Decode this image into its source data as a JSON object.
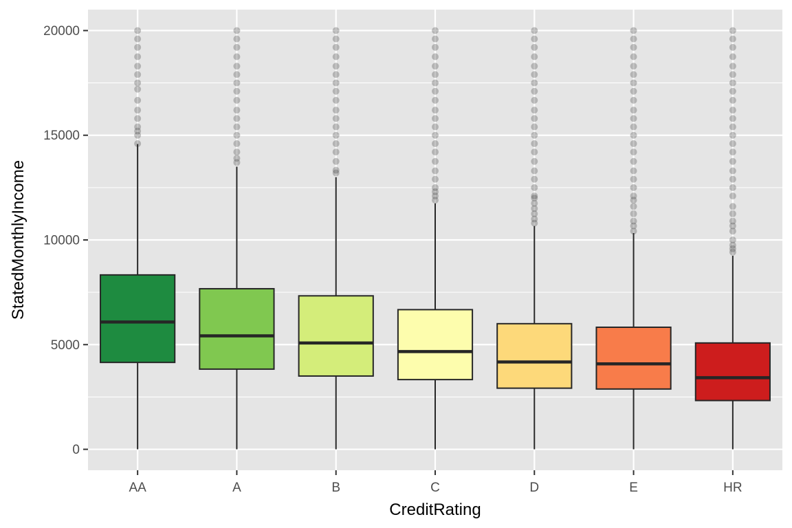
{
  "chart_data": {
    "type": "box",
    "xlabel": "CreditRating",
    "ylabel": "StatedMonthlyIncome",
    "ylim": [
      -1000,
      21000
    ],
    "yticks": [
      0,
      5000,
      10000,
      15000,
      20000
    ],
    "ytick_labels": [
      "0",
      "5000",
      "10000",
      "15000",
      "20000"
    ],
    "grid": true,
    "colors": {
      "panel_bg": "#e5e5e5",
      "grid": "#ffffff",
      "box_outline": "#262626",
      "outlier": "#333333"
    },
    "categories": [
      "AA",
      "A",
      "B",
      "C",
      "D",
      "E",
      "HR"
    ],
    "boxes": [
      {
        "category": "AA",
        "fill": "#1e8b40",
        "min": 0,
        "q1": 4150,
        "median": 6080,
        "q3": 8330,
        "whisker_high": 14580,
        "outliers": [
          14600,
          15000,
          15200,
          15400,
          15800,
          16200,
          16670,
          17200,
          17500,
          17900,
          18300,
          18750,
          19200,
          19600,
          20000
        ]
      },
      {
        "category": "A",
        "fill": "#80c850",
        "min": 0,
        "q1": 3830,
        "median": 5420,
        "q3": 7670,
        "whisker_high": 13500,
        "outliers": [
          13700,
          13900,
          14200,
          14600,
          15000,
          15400,
          15800,
          16200,
          16670,
          17100,
          17500,
          17900,
          18300,
          18750,
          19200,
          19600,
          20000
        ]
      },
      {
        "category": "B",
        "fill": "#d4ed7a",
        "min": 0,
        "q1": 3500,
        "median": 5080,
        "q3": 7330,
        "whisker_high": 13000,
        "outliers": [
          13200,
          13330,
          13750,
          14200,
          14600,
          15000,
          15400,
          15800,
          16200,
          16670,
          17100,
          17500,
          17900,
          18300,
          18750,
          19200,
          19600,
          20000
        ]
      },
      {
        "category": "C",
        "fill": "#fdfdad",
        "min": 0,
        "q1": 3330,
        "median": 4670,
        "q3": 6670,
        "whisker_high": 11750,
        "outliers": [
          11900,
          12100,
          12300,
          12500,
          12900,
          13300,
          13750,
          14200,
          14600,
          15000,
          15400,
          15800,
          16200,
          16670,
          17100,
          17500,
          17900,
          18300,
          18750,
          19200,
          19600,
          20000
        ]
      },
      {
        "category": "D",
        "fill": "#fdd97a",
        "min": 0,
        "q1": 2920,
        "median": 4170,
        "q3": 6000,
        "whisker_high": 10670,
        "outliers": [
          10800,
          11000,
          11250,
          11500,
          11750,
          12000,
          12100,
          12500,
          12900,
          13300,
          13750,
          14200,
          14600,
          15000,
          15400,
          15800,
          16200,
          16670,
          17100,
          17500,
          17900,
          18300,
          18750,
          19200,
          19600,
          20000
        ]
      },
      {
        "category": "E",
        "fill": "#f87c4a",
        "min": 0,
        "q1": 2880,
        "median": 4080,
        "q3": 5830,
        "whisker_high": 10330,
        "outliers": [
          10420,
          10670,
          10900,
          11250,
          11600,
          11900,
          12100,
          12500,
          12900,
          13300,
          13750,
          14200,
          14600,
          15000,
          15400,
          15800,
          16200,
          16670,
          17100,
          17500,
          17900,
          18300,
          18750,
          19200,
          19600,
          20000
        ]
      },
      {
        "category": "HR",
        "fill": "#cd1d1d",
        "min": 0,
        "q1": 2330,
        "median": 3420,
        "q3": 5080,
        "whisker_high": 9250,
        "outliers": [
          9420,
          9580,
          9750,
          10000,
          10420,
          10670,
          10900,
          11250,
          11600,
          12100,
          12500,
          12900,
          13300,
          13750,
          14200,
          14600,
          15000,
          15400,
          15800,
          16200,
          16670,
          17100,
          17500,
          17900,
          18300,
          18750,
          19200,
          19600,
          20000
        ]
      }
    ]
  }
}
